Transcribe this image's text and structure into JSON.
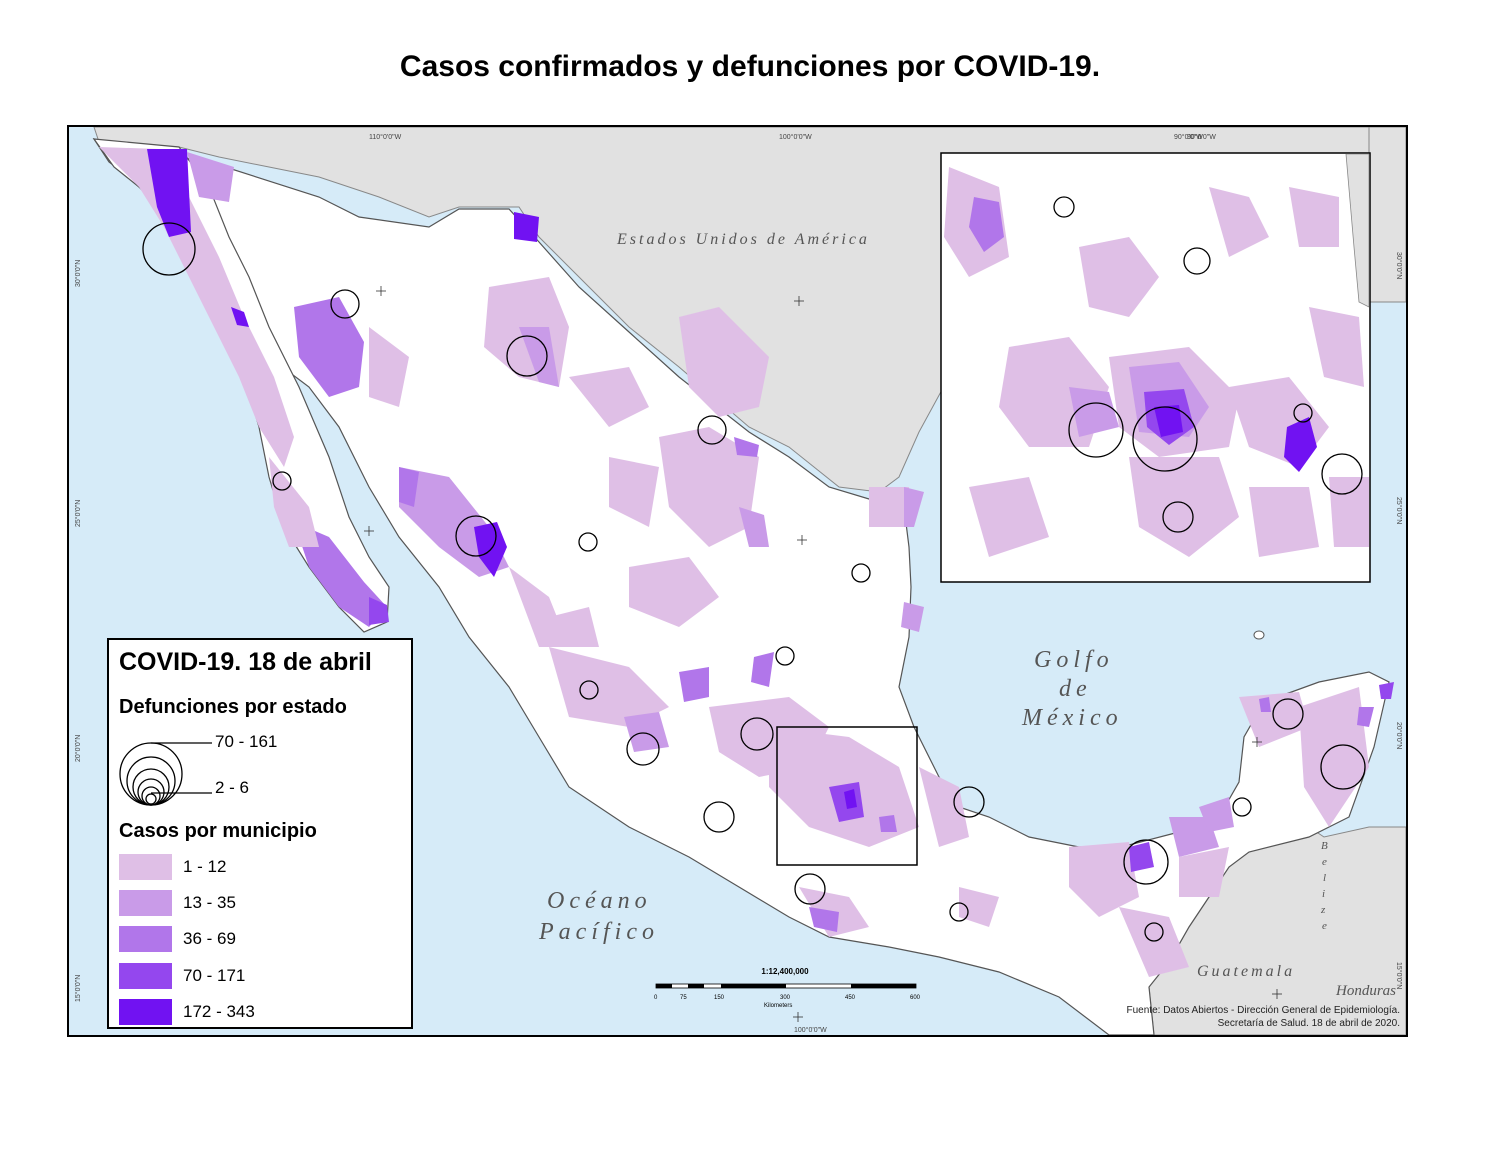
{
  "title": "Casos confirmados y defunciones por COVID-19.",
  "map_labels": {
    "usa": "Estados Unidos de América",
    "gulf": [
      "Golfo",
      "de",
      "México"
    ],
    "pacific": [
      "Océano",
      "Pacífico"
    ],
    "guatemala": "Guatemala",
    "honduras": "Honduras",
    "belize": "Belize"
  },
  "graticule": {
    "lon_top": [
      "110°0'0\"W",
      "100°0'0\"W",
      "90°0'0\"W"
    ],
    "lon_bottom": "100°0'0\"W",
    "lat_left": [
      "30°0'0\"N",
      "25°0'0\"N",
      "20°0'0\"N",
      "15°0'0\"N"
    ],
    "lat_right": [
      "30°0'0\"N",
      "25°0'0\"N",
      "20°0'0\"N",
      "15°0'0\"N"
    ]
  },
  "legend": {
    "title": "COVID-19. 18 de abril",
    "deaths_title": "Defunciones por estado",
    "deaths_max": "70 - 161",
    "deaths_min": "2 - 6",
    "cases_title": "Casos por municipio",
    "classes": [
      {
        "label": "1 - 12",
        "color": "#dfbfe6"
      },
      {
        "label": "13 - 35",
        "color": "#c99be8"
      },
      {
        "label": "36 - 69",
        "color": "#b176ea"
      },
      {
        "label": "70 - 171",
        "color": "#9447ee"
      },
      {
        "label": "172 - 343",
        "color": "#7112f2"
      }
    ]
  },
  "scale": {
    "ratio": "1:12,400,000",
    "ticks": [
      "0",
      "75",
      "150",
      "300",
      "450",
      "600"
    ],
    "unit": "Kilometers"
  },
  "source": [
    "Fuente: Datos Abiertos - Dirección General de Epidemiología.",
    "Secretaría de Salud. 18 de abril de 2020."
  ],
  "colors": {
    "water": "#d6ebf8",
    "land_mexico": "#ffffff",
    "land_other": "#e1e1e1",
    "boundary": "#3a3a3a"
  }
}
